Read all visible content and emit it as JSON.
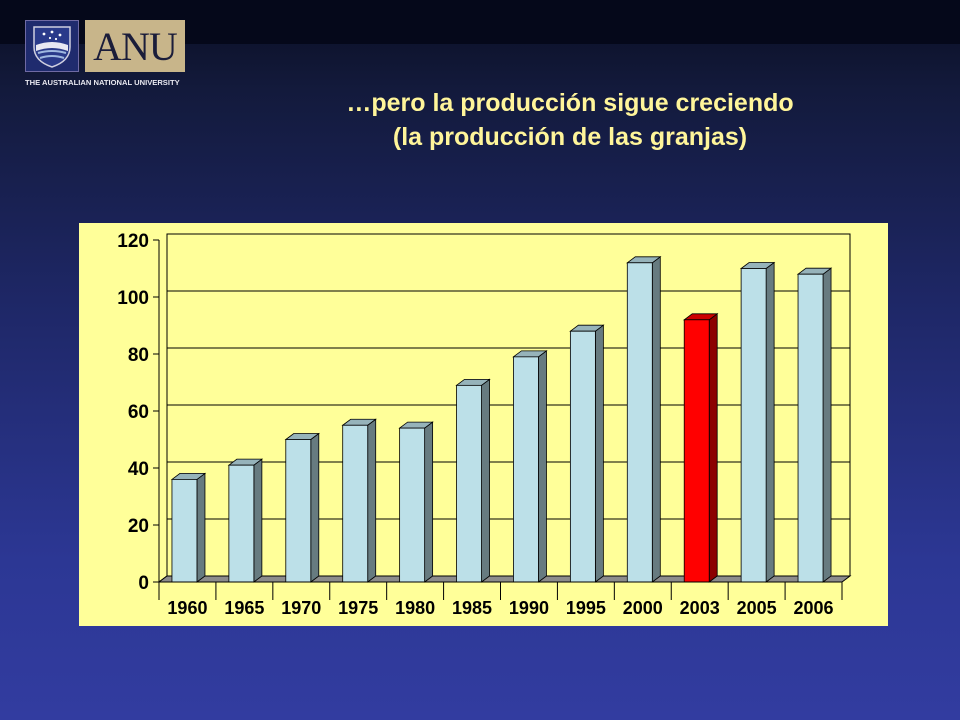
{
  "header": {
    "logo_text": "ANU",
    "university_name": "THE AUSTRALIAN NATIONAL UNIVERSITY"
  },
  "slide": {
    "title_line1": "…pero la producción sigue creciendo",
    "title_line2": "(la producción de las granjas)"
  },
  "chart_data": {
    "type": "bar",
    "categories": [
      "1960",
      "1965",
      "1970",
      "1975",
      "1980",
      "1985",
      "1990",
      "1995",
      "2000",
      "2003",
      "2005",
      "2006"
    ],
    "values": [
      36,
      41,
      50,
      55,
      54,
      69,
      79,
      88,
      112,
      92,
      110,
      108
    ],
    "highlight_index": 9,
    "ylim": [
      0,
      120
    ],
    "yticks": [
      0,
      20,
      40,
      60,
      80,
      100,
      120
    ],
    "grid": true,
    "bar_color": "#bce0e8",
    "highlight_color": "#ff0000",
    "background_color": "#ffff99",
    "title": "",
    "xlabel": "",
    "ylabel": ""
  }
}
